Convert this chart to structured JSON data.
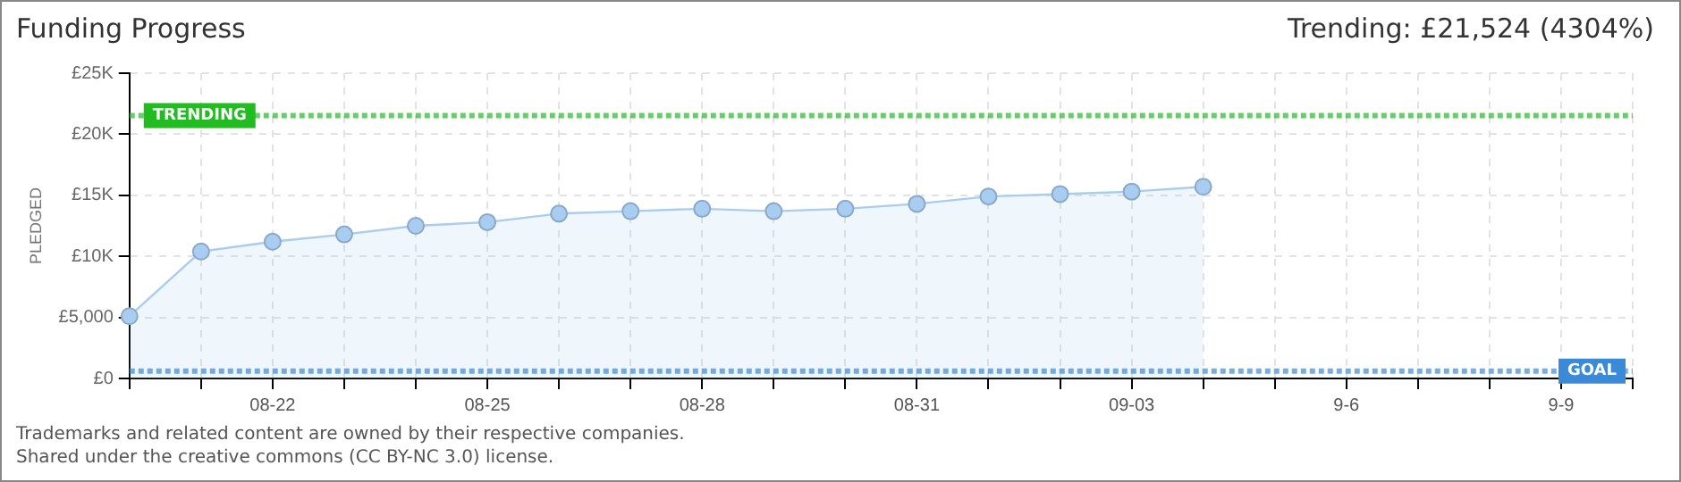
{
  "chart_data": {
    "type": "area",
    "title": "Funding Progress",
    "ylabel": "PLEDGED",
    "categories": [
      null,
      null,
      "08-22",
      null,
      null,
      "08-25",
      null,
      null,
      "08-28",
      null,
      null,
      "08-31",
      null,
      null,
      "09-03",
      null,
      null,
      "9-6",
      null,
      null,
      "9-9",
      null
    ],
    "series": [
      {
        "color": "#a9cdf0",
        "values": [
          5100,
          10400,
          11200,
          11800,
          12500,
          12800,
          13500,
          13700,
          13900,
          13700,
          13900,
          14300,
          14900,
          15100,
          15300,
          15700,
          null,
          null,
          null,
          null,
          null,
          null
        ]
      }
    ],
    "ylim": [
      0,
      25000
    ],
    "yticks": [
      {
        "value": 0,
        "label": "£0"
      },
      {
        "value": 5000,
        "label": "£5,000"
      },
      {
        "value": 10000,
        "label": "£10K"
      },
      {
        "value": 15000,
        "label": "£15K"
      },
      {
        "value": 20000,
        "label": "£20K"
      },
      {
        "value": 25000,
        "label": "£25K"
      }
    ],
    "ref_lines": [
      {
        "axis": "y",
        "value": 21524,
        "label": "TRENDING",
        "color": "#22bb22",
        "line_style": "dotted"
      },
      {
        "axis": "y",
        "value": 600,
        "label": "GOAL",
        "color": "#3a8ad8",
        "line_style": "dotted"
      }
    ],
    "annotations": [
      "Trending: £21,524 (4304%)",
      "Trademarks and related content are owned by their respective companies.",
      "Shared under the creative commons (CC BY-NC 3.0) license."
    ],
    "grid": true,
    "legend": false,
    "marker": "circle",
    "line_style": "solid"
  }
}
